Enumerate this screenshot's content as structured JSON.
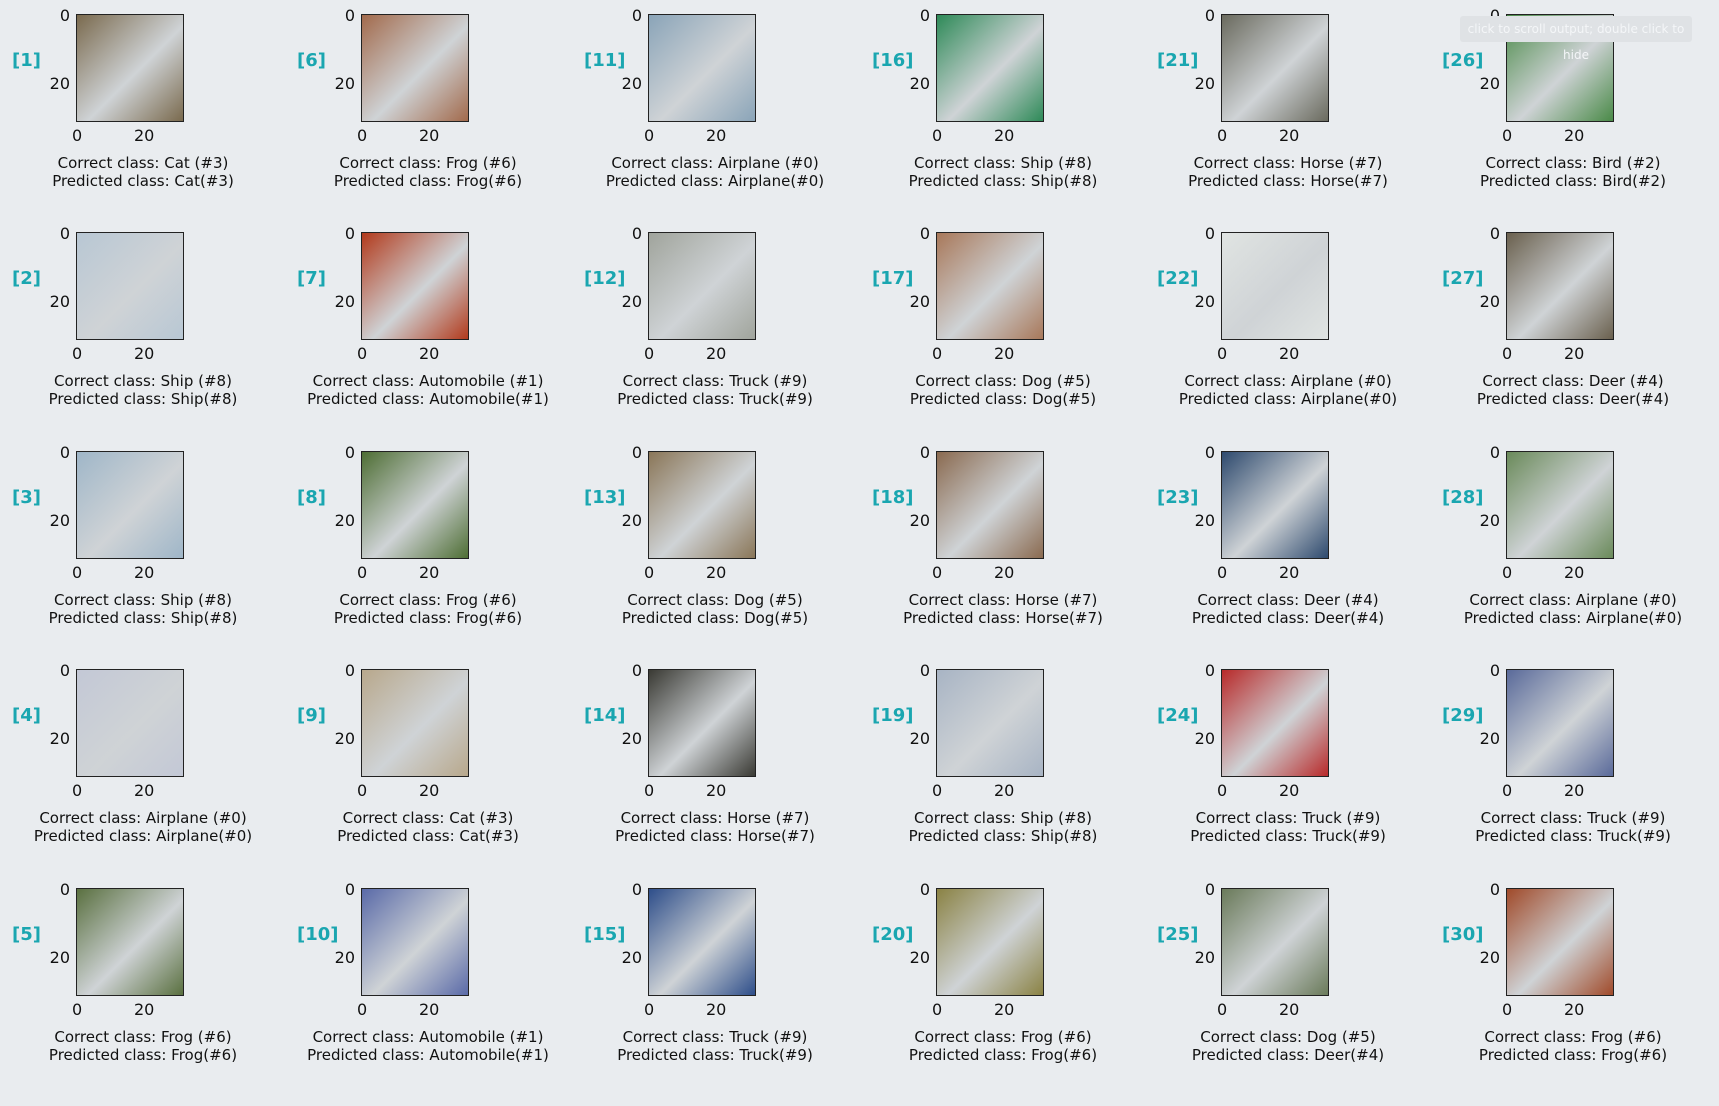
{
  "cells": [
    {
      "index": "[1]",
      "correct": "Correct class: Cat (#3)",
      "predicted": "Predicted class: Cat(#3)",
      "icon": "cat-image",
      "color": "#7a6a4e"
    },
    {
      "index": "[2]",
      "correct": "Correct class: Ship (#8)",
      "predicted": "Predicted class: Ship(#8)",
      "icon": "ship-image",
      "color": "#b8c7d4"
    },
    {
      "index": "[3]",
      "correct": "Correct class: Ship (#8)",
      "predicted": "Predicted class: Ship(#8)",
      "icon": "ship-image",
      "color": "#9fb6c8"
    },
    {
      "index": "[4]",
      "correct": "Correct class: Airplane (#0)",
      "predicted": "Predicted class: Airplane(#0)",
      "icon": "airplane-image",
      "color": "#c3c8d6"
    },
    {
      "index": "[5]",
      "correct": "Correct class: Frog (#6)",
      "predicted": "Predicted class: Frog(#6)",
      "icon": "frog-image",
      "color": "#5a7040"
    },
    {
      "index": "[6]",
      "correct": "Correct class: Frog (#6)",
      "predicted": "Predicted class: Frog(#6)",
      "icon": "frog-image",
      "color": "#a26a4c"
    },
    {
      "index": "[7]",
      "correct": "Correct class: Automobile (#1)",
      "predicted": "Predicted class: Automobile(#1)",
      "icon": "automobile-image",
      "color": "#b23a1c"
    },
    {
      "index": "[8]",
      "correct": "Correct class: Frog (#6)",
      "predicted": "Predicted class: Frog(#6)",
      "icon": "frog-image",
      "color": "#4e6e34"
    },
    {
      "index": "[9]",
      "correct": "Correct class: Cat (#3)",
      "predicted": "Predicted class: Cat(#3)",
      "icon": "cat-image",
      "color": "#b8a88c"
    },
    {
      "index": "[10]",
      "correct": "Correct class: Automobile (#1)",
      "predicted": "Predicted class: Automobile(#1)",
      "icon": "automobile-image",
      "color": "#5a6aa8"
    },
    {
      "index": "[11]",
      "correct": "Correct class: Airplane (#0)",
      "predicted": "Predicted class: Airplane(#0)",
      "icon": "airplane-image",
      "color": "#8aa4b8"
    },
    {
      "index": "[12]",
      "correct": "Correct class: Truck (#9)",
      "predicted": "Predicted class: Truck(#9)",
      "icon": "truck-image",
      "color": "#a0a49c"
    },
    {
      "index": "[13]",
      "correct": "Correct class: Dog (#5)",
      "predicted": "Predicted class: Dog(#5)",
      "icon": "dog-image",
      "color": "#8a7658"
    },
    {
      "index": "[14]",
      "correct": "Correct class: Horse (#7)",
      "predicted": "Predicted class: Horse(#7)",
      "icon": "horse-image",
      "color": "#3a3a34"
    },
    {
      "index": "[15]",
      "correct": "Correct class: Truck (#9)",
      "predicted": "Predicted class: Truck(#9)",
      "icon": "truck-image",
      "color": "#2e4e8a"
    },
    {
      "index": "[16]",
      "correct": "Correct class: Ship (#8)",
      "predicted": "Predicted class: Ship(#8)",
      "icon": "ship-image",
      "color": "#2e8a58"
    },
    {
      "index": "[17]",
      "correct": "Correct class: Dog (#5)",
      "predicted": "Predicted class: Dog(#5)",
      "icon": "dog-image",
      "color": "#a8785a"
    },
    {
      "index": "[18]",
      "correct": "Correct class: Horse (#7)",
      "predicted": "Predicted class: Horse(#7)",
      "icon": "horse-image",
      "color": "#8a6a50"
    },
    {
      "index": "[19]",
      "correct": "Correct class: Ship (#8)",
      "predicted": "Predicted class: Ship(#8)",
      "icon": "ship-image",
      "color": "#a8b4c4"
    },
    {
      "index": "[20]",
      "correct": "Correct class: Frog (#6)",
      "predicted": "Predicted class: Frog(#6)",
      "icon": "frog-image",
      "color": "#8a8244"
    },
    {
      "index": "[21]",
      "correct": "Correct class: Horse (#7)",
      "predicted": "Predicted class: Horse(#7)",
      "icon": "horse-image",
      "color": "#6a6a5e"
    },
    {
      "index": "[22]",
      "correct": "Correct class: Airplane (#0)",
      "predicted": "Predicted class: Airplane(#0)",
      "icon": "airplane-image",
      "color": "#e0e4e2"
    },
    {
      "index": "[23]",
      "correct": "Correct class: Deer (#4)",
      "predicted": "Predicted class: Deer(#4)",
      "icon": "deer-image",
      "color": "#2e4a6e"
    },
    {
      "index": "[24]",
      "correct": "Correct class: Truck (#9)",
      "predicted": "Predicted class: Truck(#9)",
      "icon": "truck-image",
      "color": "#b82a2a"
    },
    {
      "index": "[25]",
      "correct": "Correct class: Dog (#5)",
      "predicted": "Predicted class: Deer(#4)",
      "icon": "dog-image",
      "color": "#6a7a5a"
    },
    {
      "index": "[26]",
      "correct": "Correct class: Bird (#2)",
      "predicted": "Predicted class: Bird(#2)",
      "icon": "bird-image",
      "color": "#4a8a48"
    },
    {
      "index": "[27]",
      "correct": "Correct class: Deer (#4)",
      "predicted": "Predicted class: Deer(#4)",
      "icon": "deer-image",
      "color": "#6a604e"
    },
    {
      "index": "[28]",
      "correct": "Correct class: Airplane (#0)",
      "predicted": "Predicted class: Airplane(#0)",
      "icon": "airplane-image",
      "color": "#6a8a5a"
    },
    {
      "index": "[29]",
      "correct": "Correct class: Truck (#9)",
      "predicted": "Predicted class: Truck(#9)",
      "icon": "truck-image",
      "color": "#5a6a9a"
    },
    {
      "index": "[30]",
      "correct": "Correct class: Frog (#6)",
      "predicted": "Predicted class: Frog(#6)",
      "icon": "frog-image",
      "color": "#a04a2a"
    }
  ],
  "ticks": {
    "y0": "0",
    "y20": "20",
    "x0": "0",
    "x20": "20"
  },
  "badge": "click to scroll output; double click to hide"
}
